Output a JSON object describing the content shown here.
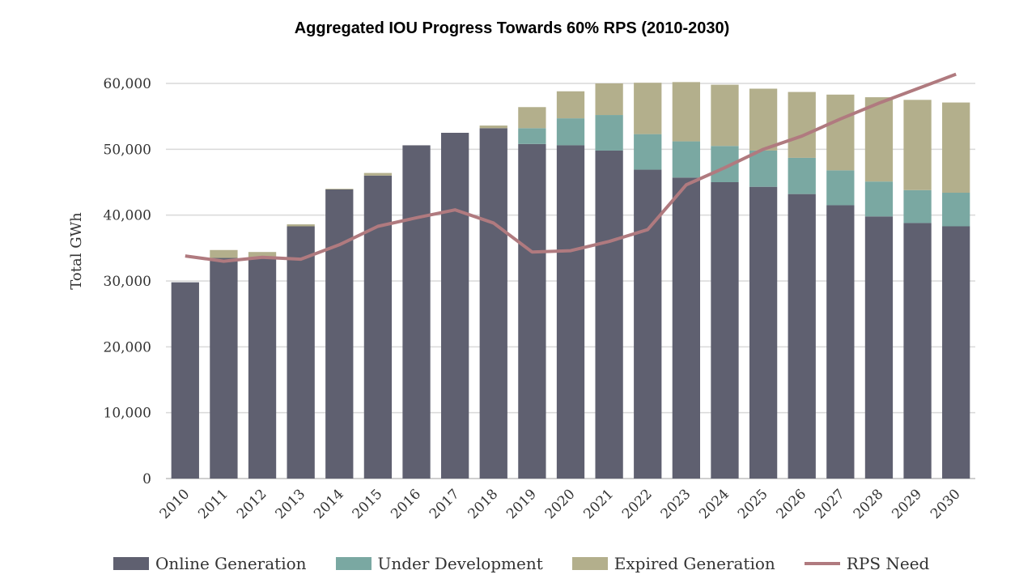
{
  "title": "Aggregated IOU Progress Towards 60% RPS (2010-2030)",
  "colors": {
    "online": "#5f6070",
    "under_development": "#7aa8a2",
    "expired": "#b3af8c",
    "rps_need": "#b07a7f",
    "grid": "#d9d9d9"
  },
  "chart_data": {
    "type": "bar",
    "stacked": true,
    "title": "Aggregated IOU Progress Towards 60% RPS (2010-2030)",
    "xlabel": "",
    "ylabel": "Total GWh",
    "ylim": [
      0,
      60000
    ],
    "yticks": [
      "0",
      "10,000",
      "20,000",
      "30,000",
      "40,000",
      "50,000",
      "60,000"
    ],
    "grid": true,
    "legend_position": "bottom",
    "categories": [
      "2010",
      "2011",
      "2012",
      "2013",
      "2014",
      "2015",
      "2016",
      "2017",
      "2018",
      "2019",
      "2020",
      "2021",
      "2022",
      "2023",
      "2024",
      "2025",
      "2026",
      "2027",
      "2028",
      "2029",
      "2030"
    ],
    "series": [
      {
        "name": "Online Generation",
        "type": "bar",
        "values": [
          29800,
          33500,
          33600,
          38300,
          43900,
          46000,
          50600,
          52500,
          53200,
          50800,
          50600,
          49800,
          46900,
          45700,
          45000,
          44300,
          43200,
          41500,
          39800,
          38800,
          38300
        ]
      },
      {
        "name": "Under Development",
        "type": "bar",
        "values": [
          0,
          0,
          0,
          0,
          0,
          0,
          0,
          0,
          0,
          2400,
          4100,
          5400,
          5400,
          5500,
          5500,
          5500,
          5500,
          5300,
          5300,
          5000,
          5100
        ]
      },
      {
        "name": "Expired Generation",
        "type": "bar",
        "values": [
          0,
          1200,
          800,
          300,
          100,
          400,
          0,
          0,
          400,
          3200,
          4100,
          4800,
          7800,
          9000,
          9300,
          9400,
          10000,
          11500,
          12800,
          13700,
          13700
        ]
      },
      {
        "name": "RPS Need",
        "type": "line",
        "values": [
          33800,
          33000,
          33600,
          33300,
          35500,
          38300,
          39600,
          40800,
          38800,
          34400,
          34600,
          36000,
          37800,
          44600,
          47200,
          50000,
          52000,
          54600,
          57000,
          59200,
          61400
        ]
      }
    ]
  }
}
